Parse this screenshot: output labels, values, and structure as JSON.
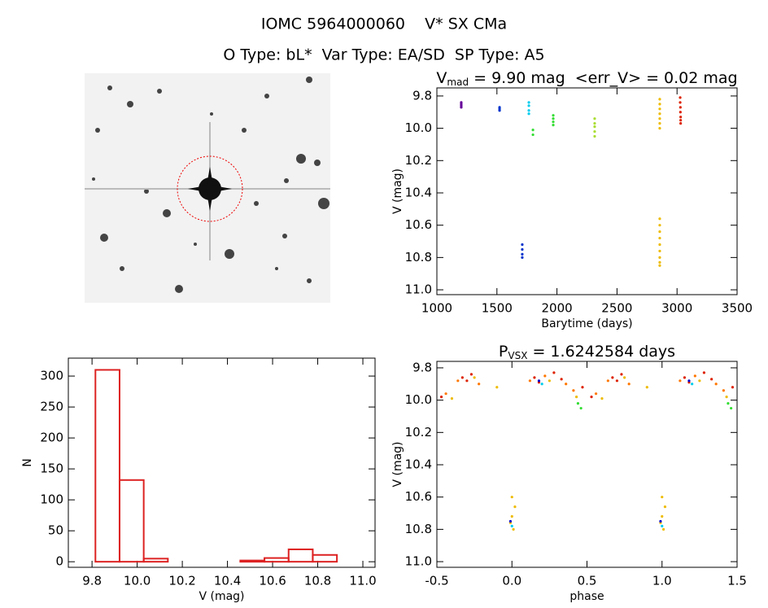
{
  "header": {
    "title": "IOMC 5964000060    V* SX CMa",
    "subtitle": "O Type: bL*  Var Type: EA/SD  SP Type: A5"
  },
  "chart_data": [
    {
      "type": "scatter",
      "title": {
        "text": "V",
        "sub": "mad",
        "rest": " = 9.90 mag  <err_V> = 0.02 mag"
      },
      "x_label": "Barytime (days)",
      "y_label": "V (mag)",
      "xlim": [
        1000,
        3500
      ],
      "xticks": [
        1000,
        1500,
        2000,
        2500,
        3000,
        3500
      ],
      "ylim": [
        11.03,
        9.75
      ],
      "yticks": [
        9.8,
        {
          "value": 10,
          "label": "10.0"
        },
        10.2,
        10.4,
        10.6,
        10.8,
        {
          "value": 11,
          "label": "11.0"
        }
      ],
      "series": [
        {
          "color": "#660099",
          "x": [
            1203,
            1203,
            1203,
            1203
          ],
          "values": [
            9.84,
            9.85,
            9.86,
            9.87
          ]
        },
        {
          "color": "#0033cc",
          "x": [
            1522,
            1522,
            1522,
            1711,
            1711,
            1711,
            1711
          ],
          "values": [
            9.87,
            9.88,
            9.89,
            10.72,
            10.75,
            10.78,
            10.8
          ]
        },
        {
          "color": "#00ccee",
          "x": [
            1766,
            1766,
            1766,
            1766
          ],
          "values": [
            9.84,
            9.86,
            9.89,
            9.91
          ]
        },
        {
          "color": "#33dd33",
          "x": [
            1800,
            1800,
            1969,
            1969,
            1969,
            1969
          ],
          "values": [
            10.01,
            10.04,
            9.92,
            9.94,
            9.96,
            9.98
          ]
        },
        {
          "color": "#aadd33",
          "x": [
            2314,
            2314,
            2314,
            2314,
            2314
          ],
          "values": [
            9.94,
            9.97,
            9.99,
            10.02,
            10.05
          ]
        },
        {
          "color": "#eebb00",
          "x": [
            2856,
            2856,
            2856,
            2856,
            2856,
            2856,
            2856,
            2856,
            2856,
            2856,
            2856,
            2856,
            2856,
            2856,
            2856,
            2856
          ],
          "values": [
            9.82,
            9.85,
            9.88,
            9.91,
            9.94,
            9.97,
            10.0,
            10.56,
            10.6,
            10.64,
            10.68,
            10.72,
            10.76,
            10.8,
            10.83,
            10.85
          ]
        },
        {
          "color": "#dd2200",
          "x": [
            3026,
            3026,
            3028,
            3028,
            3030,
            3030,
            3030
          ],
          "values": [
            9.81,
            9.84,
            9.87,
            9.9,
            9.93,
            9.95,
            9.97
          ]
        }
      ]
    },
    {
      "type": "histogram",
      "x_label": "V (mag)",
      "y_label": "N",
      "color": "#dd2222",
      "bins": [
        9.815,
        9.922,
        10.029,
        10.136,
        10.243,
        10.35,
        10.457,
        10.564,
        10.671,
        10.778,
        10.885
      ],
      "values": [
        310,
        132,
        5,
        0,
        0,
        0,
        2,
        6,
        20,
        11
      ],
      "xlim": [
        9.695,
        11.054
      ],
      "xticks": [
        9.8,
        {
          "value": 10,
          "label": "10.0"
        },
        10.2,
        10.4,
        10.6,
        10.8,
        {
          "value": 11,
          "label": "11.0"
        }
      ],
      "ylim": [
        -9,
        329
      ],
      "yticks": [
        0,
        50,
        100,
        150,
        200,
        250,
        300
      ]
    },
    {
      "type": "scatter",
      "title": {
        "text": "P",
        "sub": "VSX",
        "rest": " = 1.6242584 days"
      },
      "x_label": "phase",
      "y_label": "V (mag)",
      "xlim": [
        -0.5,
        1.5
      ],
      "xticks": [
        -0.5,
        {
          "value": 0,
          "label": "0.0"
        },
        0.5,
        {
          "value": 1,
          "label": "1.0"
        },
        1.5
      ],
      "ylim": [
        11.035,
        9.76
      ],
      "yticks": [
        9.8,
        {
          "value": 10,
          "label": "10.0"
        },
        10.2,
        10.4,
        10.6,
        10.8,
        {
          "value": 11,
          "label": "11.0"
        }
      ],
      "series": [
        {
          "color": "#dd2200",
          "x": [
            -0.47,
            -0.33,
            -0.3,
            -0.27,
            0.15,
            0.18,
            0.28,
            0.33,
            0.47,
            0.53,
            0.67,
            0.7,
            0.73,
            1.15,
            1.18,
            1.28,
            1.33,
            1.47
          ],
          "values": [
            9.98,
            9.86,
            9.88,
            9.84,
            9.86,
            9.89,
            9.83,
            9.87,
            9.92,
            9.98,
            9.86,
            9.88,
            9.84,
            9.86,
            9.89,
            9.83,
            9.87,
            9.92
          ]
        },
        {
          "color": "#ff7700",
          "x": [
            -0.44,
            -0.36,
            -0.22,
            0.12,
            0.22,
            0.36,
            0.41,
            0.56,
            0.64,
            0.78,
            1.12,
            1.22,
            1.36,
            1.41
          ],
          "values": [
            9.96,
            9.88,
            9.9,
            9.88,
            9.85,
            9.9,
            9.94,
            9.96,
            9.88,
            9.9,
            9.88,
            9.85,
            9.9,
            9.94
          ]
        },
        {
          "color": "#eebb00",
          "x": [
            -0.4,
            -0.25,
            -0.1,
            0,
            0,
            0.01,
            -0.01,
            0.02,
            0.25,
            0.43,
            0.6,
            0.75,
            0.9,
            1,
            1,
            1.01,
            0.99,
            1.02,
            1.25,
            1.43
          ],
          "values": [
            9.99,
            9.86,
            9.92,
            10.6,
            10.72,
            10.8,
            10.76,
            10.66,
            9.88,
            9.98,
            9.99,
            9.86,
            9.92,
            10.6,
            10.72,
            10.8,
            10.76,
            10.66,
            9.88,
            9.98
          ]
        },
        {
          "color": "#33dd33",
          "x": [
            0.44,
            0.46,
            1.44,
            1.46
          ],
          "values": [
            10.02,
            10.05,
            10.02,
            10.05
          ]
        },
        {
          "color": "#0000cc",
          "x": [
            0.18,
            -0.01,
            1.18,
            0.99
          ],
          "values": [
            9.88,
            10.75,
            9.88,
            10.75
          ]
        },
        {
          "color": "#00ccee",
          "x": [
            0.2,
            0,
            1.2,
            1
          ],
          "values": [
            9.9,
            10.78,
            9.9,
            10.78
          ]
        }
      ]
    }
  ]
}
